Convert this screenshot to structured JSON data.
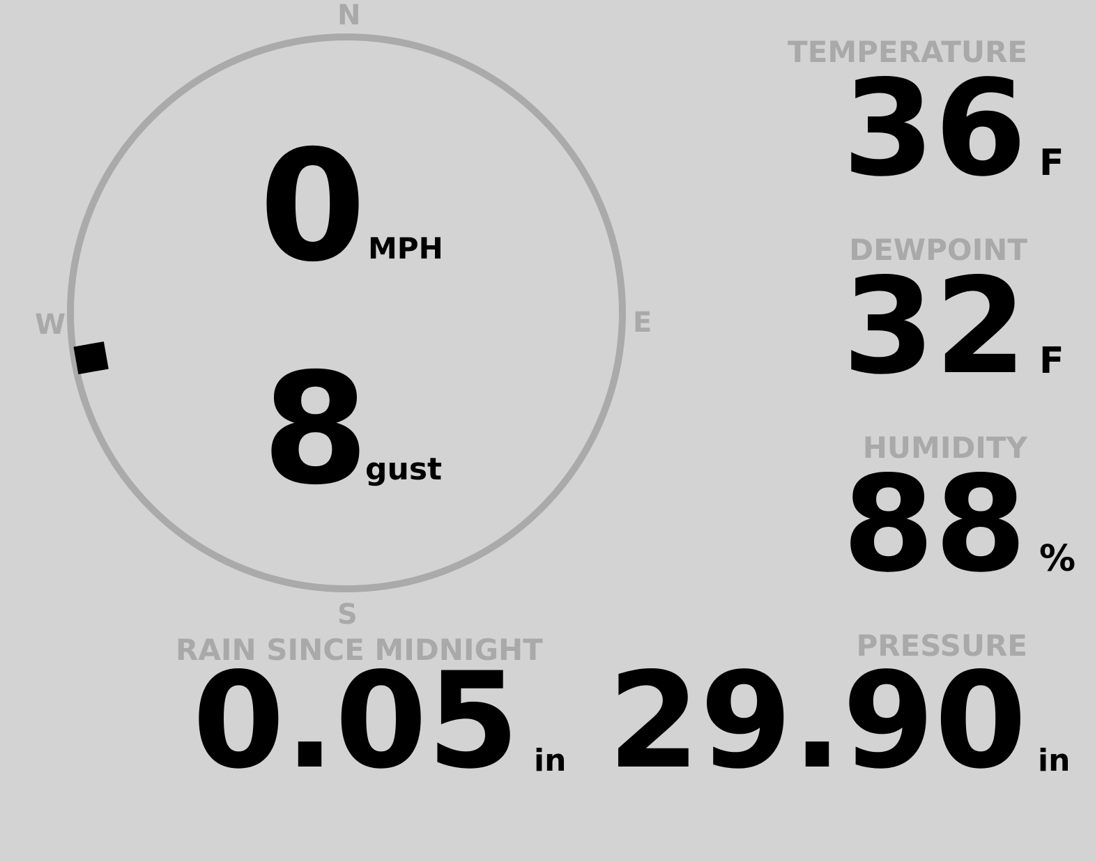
{
  "wind": {
    "speed": "0",
    "speed_unit": "MPH",
    "gust": "8",
    "gust_label": "gust",
    "direction_deg": 260,
    "compass": {
      "n": "N",
      "e": "E",
      "s": "S",
      "w": "W"
    }
  },
  "rain": {
    "label": "RAIN SINCE MIDNIGHT",
    "value": "0.05",
    "unit": "in"
  },
  "temperature": {
    "label": "TEMPERATURE",
    "value": "36",
    "unit": "F"
  },
  "dewpoint": {
    "label": "DEWPOINT",
    "value": "32",
    "unit": "F"
  },
  "humidity": {
    "label": "HUMIDITY",
    "value": "88",
    "unit": "%"
  },
  "pressure": {
    "label": "PRESSURE",
    "value": "29.90",
    "unit": "in"
  },
  "colors": {
    "background": "#d3d3d3",
    "label": "#a9a9a9",
    "value": "#000000",
    "ring": "#aaaaaa"
  }
}
